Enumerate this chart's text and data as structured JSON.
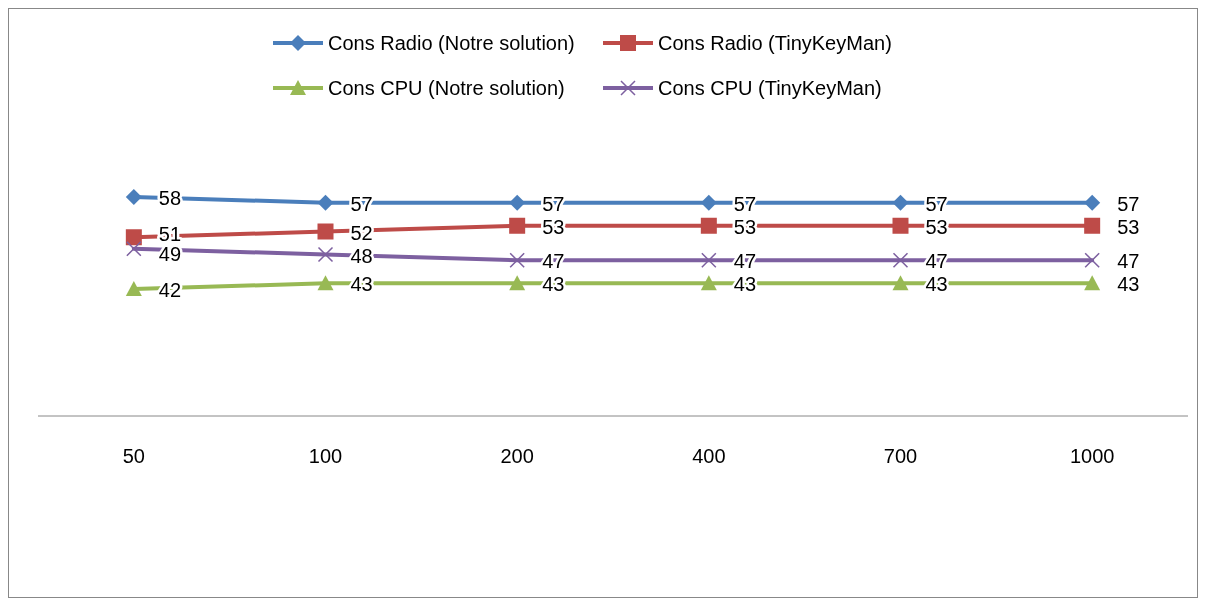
{
  "chart_data": {
    "type": "line",
    "categories": [
      "50",
      "100",
      "200",
      "400",
      "700",
      "1000"
    ],
    "tick_labels": "x",
    "data_labels": true,
    "legend": "top",
    "grid": false,
    "series": [
      {
        "name": "Cons Radio (Notre solution)",
        "color": "#4a7ebb",
        "marker": "diamond",
        "values": [
          58,
          57,
          57,
          57,
          57,
          57
        ]
      },
      {
        "name": "Cons Radio (TinyKeyMan)",
        "color": "#be4b48",
        "marker": "square",
        "values": [
          51,
          52,
          53,
          53,
          53,
          53
        ]
      },
      {
        "name": "Cons CPU (Notre solution)",
        "color": "#98b954",
        "marker": "triangle",
        "values": [
          42,
          43,
          43,
          43,
          43,
          43
        ]
      },
      {
        "name": "Cons CPU (TinyKeyMan)",
        "color": "#7d60a0",
        "marker": "cross",
        "values": [
          49,
          48,
          47,
          47,
          47,
          47
        ]
      }
    ]
  }
}
